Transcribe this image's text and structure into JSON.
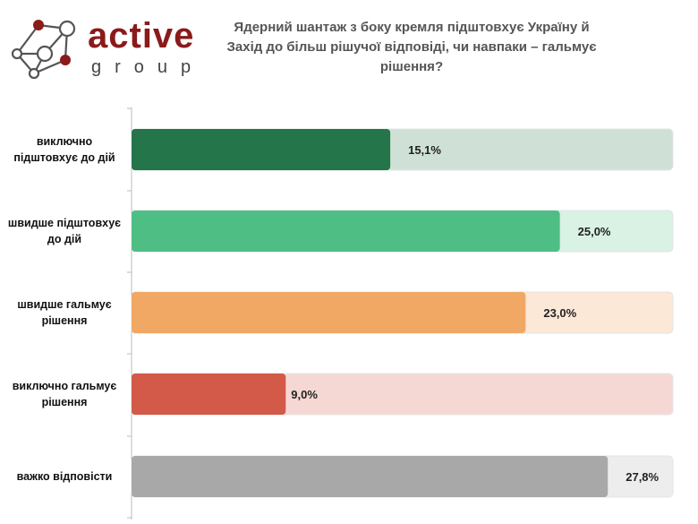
{
  "logo": {
    "brand_top": "active",
    "brand_bottom": "group"
  },
  "chart_data": {
    "type": "bar",
    "orientation": "horizontal",
    "title": "Ядерний шантаж з боку кремля підштовхує Україну й Захід до більш рішучої відповіді, чи навпаки – гальмує рішення?",
    "categories": [
      "виключно підштовхує до дій",
      "швидше підштовхує до дій",
      "швидше гальмує рішення",
      "виключно гальмує рішення",
      "важко відповісти"
    ],
    "values": [
      15.1,
      25.0,
      23.0,
      9.0,
      27.8
    ],
    "value_labels": [
      "15,1%",
      "25,0%",
      "23,0%",
      "9,0%",
      "27,8%"
    ],
    "colors": [
      "#24754a",
      "#4fbe85",
      "#f2a865",
      "#d35a48",
      "#a8a8a8"
    ],
    "track_colors": [
      "#cfe1d6",
      "#d9f2e4",
      "#fce8d7",
      "#f5d8d4",
      "#ededed"
    ],
    "xlim": [
      0,
      31.6
    ],
    "grid": false
  }
}
